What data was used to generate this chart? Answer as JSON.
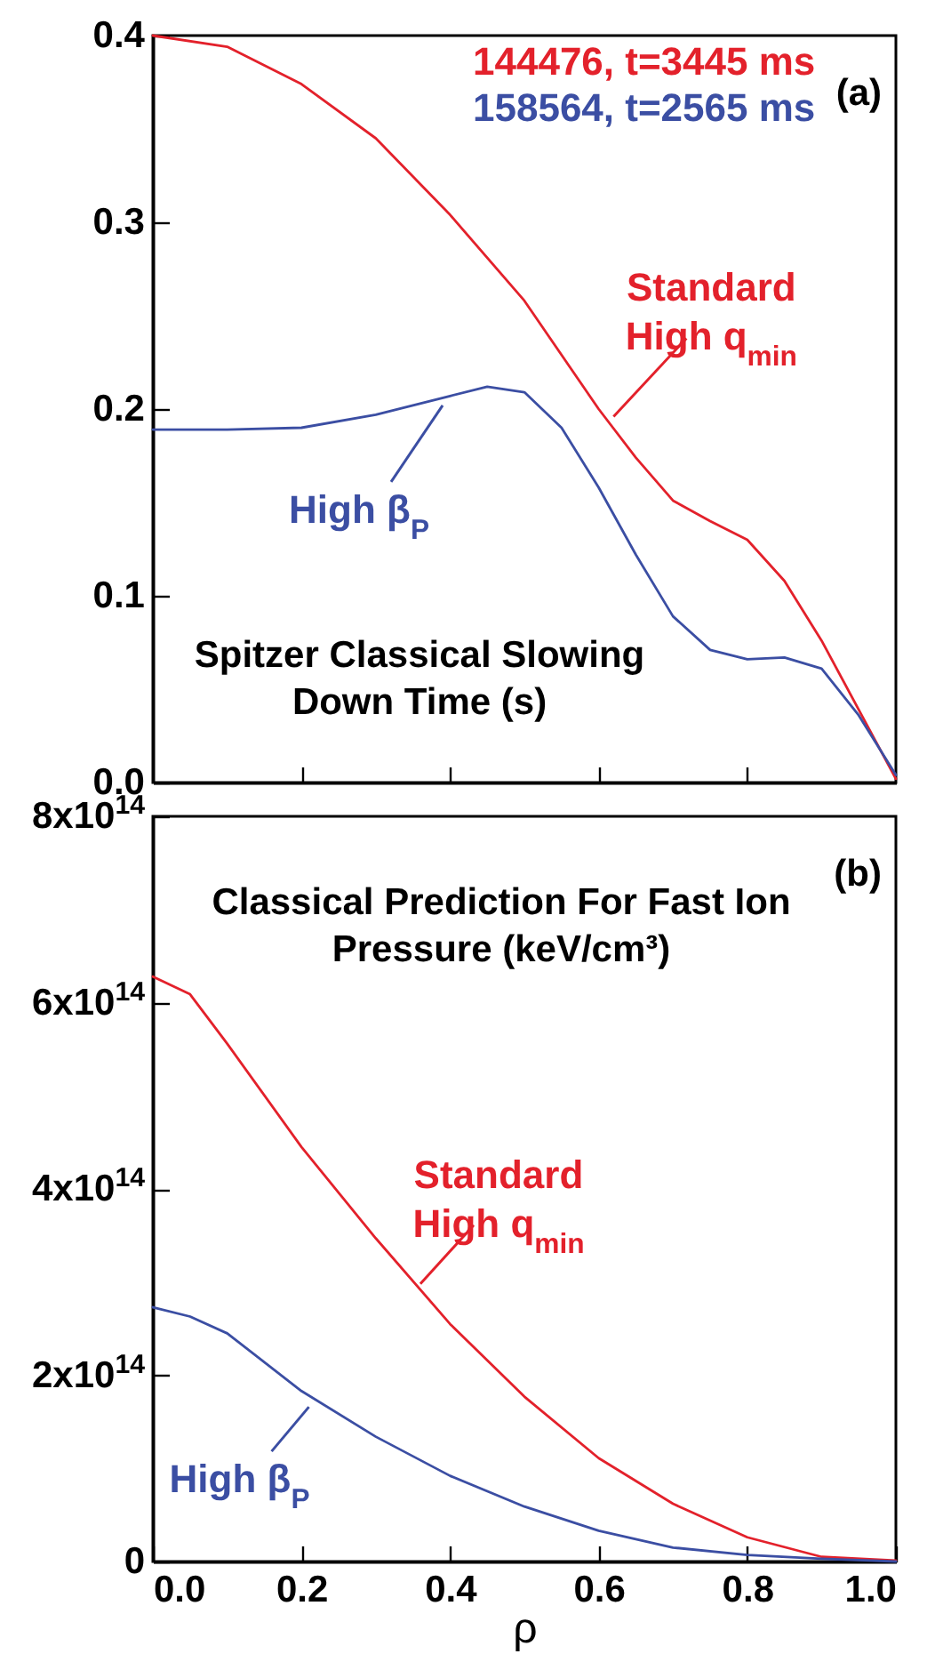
{
  "chart_data": [
    {
      "type": "line",
      "title": "Spitzer Classical Slowing Down Time (s)",
      "xlim": [
        0,
        1
      ],
      "ylim": [
        0,
        0.4
      ],
      "xticks": [
        0.2,
        0.4,
        0.6,
        0.8
      ],
      "yticks": [
        {
          "value": 0,
          "label": "0.0"
        },
        0.1,
        0.2,
        0.3,
        0.4
      ],
      "tick_labels": "y",
      "legend": "top right",
      "series": [
        {
          "name": "144476, t=3445 ms",
          "color": "#e3212b",
          "x": [
            0,
            0.1,
            0.2,
            0.3,
            0.4,
            0.5,
            0.6,
            0.65,
            0.7,
            0.75,
            0.8,
            0.85,
            0.9,
            0.95,
            1
          ],
          "values": [
            0.4,
            0.394,
            0.374,
            0.345,
            0.304,
            0.258,
            0.2,
            0.174,
            0.151,
            0.14,
            0.13,
            0.108,
            0.076,
            0.039,
            0.002
          ]
        },
        {
          "name": "158564, t=2565 ms",
          "color": "#3b4ea3",
          "x": [
            0,
            0.1,
            0.2,
            0.3,
            0.4,
            0.45,
            0.5,
            0.55,
            0.6,
            0.65,
            0.7,
            0.75,
            0.8,
            0.85,
            0.9,
            0.95,
            1
          ],
          "values": [
            0.189,
            0.189,
            0.19,
            0.197,
            0.207,
            0.212,
            0.209,
            0.19,
            0.158,
            0.122,
            0.089,
            0.071,
            0.066,
            0.067,
            0.061,
            0.036,
            0.004
          ]
        }
      ],
      "annotations": [
        "(a)",
        {
          "text": "Standard High q$_{min}$",
          "x": 0.62,
          "y": 0.196
        },
        {
          "text": "High β$_{P}$",
          "x": 0.39,
          "y": 0.202
        }
      ]
    },
    {
      "type": "line",
      "title": "Classical Prediction For Fast Ion Pressure (keV/cm³)",
      "xlabel": "ρ",
      "xlim": [
        0,
        1
      ],
      "ylim": [
        0,
        800000000000000
      ],
      "xticks": [
        {
          "value": 0,
          "label": "0.0"
        },
        0.2,
        0.4,
        0.6,
        0.8,
        {
          "value": 1,
          "label": "1.0"
        }
      ],
      "yticks": [
        0,
        {
          "value": 200000000000000,
          "label": "2x10$^{14}$"
        },
        {
          "value": 400000000000000,
          "label": "4x10$^{14}$"
        },
        {
          "value": 600000000000000,
          "label": "6x10$^{14}$"
        },
        {
          "value": 800000000000000,
          "label": "8x10$^{14}$"
        }
      ],
      "x": [
        0,
        0.05,
        0.1,
        0.2,
        0.3,
        0.4,
        0.5,
        0.6,
        0.7,
        0.8,
        0.9,
        1
      ],
      "series": [
        {
          "color": "#e3212b",
          "values": [
            628000000000000,
            609000000000000,
            556000000000000,
            445000000000000,
            347000000000000,
            255000000000000,
            177000000000000,
            111000000000000,
            62000000000000,
            26000000000000,
            5000000000000,
            1000000000000
          ]
        },
        {
          "color": "#3b4ea3",
          "values": [
            273000000000000,
            263000000000000,
            245000000000000,
            183000000000000,
            134000000000000,
            92000000000000,
            59000000000000,
            33000000000000,
            15000000000000,
            7000000000000,
            3000000000000,
            0
          ]
        }
      ],
      "annotations": [
        "(b)",
        {
          "text": "Standard High q$_{min}$",
          "x": 0.36,
          "y": 298000000000000
        },
        {
          "text": "High β$_{P}$",
          "x": 0.21,
          "y": 166000000000000
        }
      ]
    }
  ]
}
